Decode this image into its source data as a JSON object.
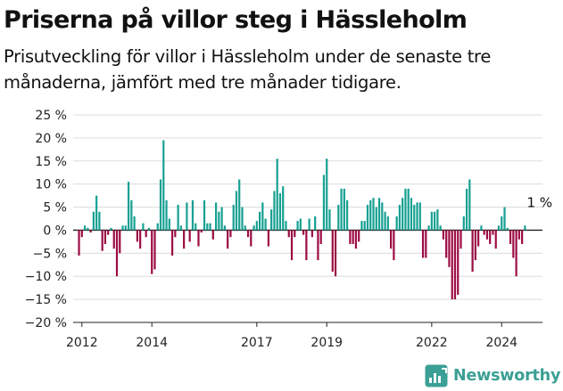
{
  "header": {
    "title": "Priserna på villor steg i Hässleholm",
    "subtitle": "Prisutveckling för villor i Hässleholm under de senaste tre månaderna, jämfört med tre månader tidigare."
  },
  "brand": {
    "name": "Newsworthy",
    "color": "#3a9f94",
    "icon": "newsworthy-logo-icon"
  },
  "colors": {
    "positive": "#16a092",
    "negative": "#9c0c43",
    "grid": "#dcdcdc",
    "axis": "#222222"
  },
  "chart_data": {
    "type": "bar",
    "title": "Priserna på villor steg i Hässleholm",
    "subtitle": "Prisutveckling för villor i Hässleholm under de senaste tre månaderna, jämfört med tre månader tidigare.",
    "xlabel": "",
    "ylabel": "",
    "ylim": [
      -20,
      25
    ],
    "yticks": [
      -20,
      -15,
      -10,
      -5,
      0,
      5,
      10,
      15,
      20,
      25
    ],
    "ytick_labels": [
      "−20 %",
      "−15 %",
      "−10 %",
      "−5 %",
      "0 %",
      "5 %",
      "10 %",
      "15 %",
      "20 %",
      "25 %"
    ],
    "x_range": [
      "2011-10",
      "2025-03"
    ],
    "xticks": [
      "2012",
      "2014",
      "2017",
      "2019",
      "2022",
      "2024"
    ],
    "grid": true,
    "legend": "none",
    "annotation": {
      "label": "1 %",
      "date": "2025-02",
      "value": 1
    },
    "series": [
      {
        "values": [
          {
            "date": "2011-12",
            "value": -5.5
          },
          {
            "date": "2012-01",
            "value": -1.5
          },
          {
            "date": "2012-02",
            "value": 1
          },
          {
            "date": "2012-03",
            "value": 0.5
          },
          {
            "date": "2012-04",
            "value": -0.5
          },
          {
            "date": "2012-05",
            "value": 4
          },
          {
            "date": "2012-06",
            "value": 7.5
          },
          {
            "date": "2012-07",
            "value": 4
          },
          {
            "date": "2012-08",
            "value": -4.5
          },
          {
            "date": "2012-09",
            "value": -3
          },
          {
            "date": "2012-10",
            "value": -1
          },
          {
            "date": "2012-11",
            "value": 0.5
          },
          {
            "date": "2012-12",
            "value": -4
          },
          {
            "date": "2013-01",
            "value": -10
          },
          {
            "date": "2013-02",
            "value": -5
          },
          {
            "date": "2013-03",
            "value": 1
          },
          {
            "date": "2013-04",
            "value": 1
          },
          {
            "date": "2013-05",
            "value": 10.5
          },
          {
            "date": "2013-06",
            "value": 6.5
          },
          {
            "date": "2013-07",
            "value": 3
          },
          {
            "date": "2013-08",
            "value": -2.5
          },
          {
            "date": "2013-09",
            "value": -4
          },
          {
            "date": "2013-10",
            "value": 1.5
          },
          {
            "date": "2013-11",
            "value": -1.5
          },
          {
            "date": "2013-12",
            "value": 0.5
          },
          {
            "date": "2014-01",
            "value": -9.5
          },
          {
            "date": "2014-02",
            "value": -8.5
          },
          {
            "date": "2014-03",
            "value": 1.5
          },
          {
            "date": "2014-04",
            "value": 11
          },
          {
            "date": "2014-05",
            "value": 19.5
          },
          {
            "date": "2014-06",
            "value": 6.5
          },
          {
            "date": "2014-07",
            "value": 2.5
          },
          {
            "date": "2014-08",
            "value": -5.5
          },
          {
            "date": "2014-09",
            "value": -1.5
          },
          {
            "date": "2014-10",
            "value": 5.5
          },
          {
            "date": "2014-11",
            "value": 1
          },
          {
            "date": "2014-12",
            "value": -4
          },
          {
            "date": "2015-01",
            "value": 6
          },
          {
            "date": "2015-02",
            "value": -2.5
          },
          {
            "date": "2015-03",
            "value": 6.5
          },
          {
            "date": "2015-04",
            "value": 1.5
          },
          {
            "date": "2015-05",
            "value": -3.5
          },
          {
            "date": "2015-06",
            "value": -0.5
          },
          {
            "date": "2015-07",
            "value": 6.5
          },
          {
            "date": "2015-08",
            "value": 1.5
          },
          {
            "date": "2015-09",
            "value": 1.5
          },
          {
            "date": "2015-10",
            "value": -2
          },
          {
            "date": "2015-11",
            "value": 6
          },
          {
            "date": "2015-12",
            "value": 4
          },
          {
            "date": "2016-01",
            "value": 5
          },
          {
            "date": "2016-02",
            "value": 1
          },
          {
            "date": "2016-03",
            "value": -4
          },
          {
            "date": "2016-04",
            "value": -1.5
          },
          {
            "date": "2016-05",
            "value": 5.5
          },
          {
            "date": "2016-06",
            "value": 8.5
          },
          {
            "date": "2016-07",
            "value": 11
          },
          {
            "date": "2016-08",
            "value": 5
          },
          {
            "date": "2016-09",
            "value": 1
          },
          {
            "date": "2016-10",
            "value": -1.5
          },
          {
            "date": "2016-11",
            "value": -3.5
          },
          {
            "date": "2016-12",
            "value": 1
          },
          {
            "date": "2017-01",
            "value": 2
          },
          {
            "date": "2017-02",
            "value": 4
          },
          {
            "date": "2017-03",
            "value": 6
          },
          {
            "date": "2017-04",
            "value": 2.5
          },
          {
            "date": "2017-05",
            "value": -3.5
          },
          {
            "date": "2017-06",
            "value": 4.5
          },
          {
            "date": "2017-07",
            "value": 8.5
          },
          {
            "date": "2017-08",
            "value": 15.5
          },
          {
            "date": "2017-09",
            "value": 8
          },
          {
            "date": "2017-10",
            "value": 9.5
          },
          {
            "date": "2017-11",
            "value": 2
          },
          {
            "date": "2017-12",
            "value": -1.5
          },
          {
            "date": "2018-01",
            "value": -6.5
          },
          {
            "date": "2018-02",
            "value": -1.5
          },
          {
            "date": "2018-03",
            "value": 2
          },
          {
            "date": "2018-04",
            "value": 2.5
          },
          {
            "date": "2018-05",
            "value": -1
          },
          {
            "date": "2018-06",
            "value": -6.5
          },
          {
            "date": "2018-07",
            "value": 2.5
          },
          {
            "date": "2018-08",
            "value": -1.5
          },
          {
            "date": "2018-09",
            "value": 3
          },
          {
            "date": "2018-10",
            "value": -6.5
          },
          {
            "date": "2018-11",
            "value": -3
          },
          {
            "date": "2018-12",
            "value": 12
          },
          {
            "date": "2019-01",
            "value": 15.5
          },
          {
            "date": "2019-02",
            "value": 4.5
          },
          {
            "date": "2019-03",
            "value": -9
          },
          {
            "date": "2019-04",
            "value": -10
          },
          {
            "date": "2019-05",
            "value": 5.5
          },
          {
            "date": "2019-06",
            "value": 9
          },
          {
            "date": "2019-07",
            "value": 9
          },
          {
            "date": "2019-08",
            "value": 6.5
          },
          {
            "date": "2019-09",
            "value": -3
          },
          {
            "date": "2019-10",
            "value": -3
          },
          {
            "date": "2019-11",
            "value": -4
          },
          {
            "date": "2019-12",
            "value": -2.5
          },
          {
            "date": "2020-01",
            "value": 2
          },
          {
            "date": "2020-02",
            "value": 2
          },
          {
            "date": "2020-03",
            "value": 5.5
          },
          {
            "date": "2020-04",
            "value": 6.5
          },
          {
            "date": "2020-05",
            "value": 7
          },
          {
            "date": "2020-06",
            "value": 5
          },
          {
            "date": "2020-07",
            "value": 7
          },
          {
            "date": "2020-08",
            "value": 6
          },
          {
            "date": "2020-09",
            "value": 4
          },
          {
            "date": "2020-10",
            "value": 3
          },
          {
            "date": "2020-11",
            "value": -4
          },
          {
            "date": "2020-12",
            "value": -6.5
          },
          {
            "date": "2021-01",
            "value": 3
          },
          {
            "date": "2021-02",
            "value": 5.5
          },
          {
            "date": "2021-03",
            "value": 7
          },
          {
            "date": "2021-04",
            "value": 9
          },
          {
            "date": "2021-05",
            "value": 9
          },
          {
            "date": "2021-06",
            "value": 7
          },
          {
            "date": "2021-07",
            "value": 5.5
          },
          {
            "date": "2021-08",
            "value": 6
          },
          {
            "date": "2021-09",
            "value": 6
          },
          {
            "date": "2021-10",
            "value": -6
          },
          {
            "date": "2021-11",
            "value": -6
          },
          {
            "date": "2021-12",
            "value": 1
          },
          {
            "date": "2022-01",
            "value": 4
          },
          {
            "date": "2022-02",
            "value": 4
          },
          {
            "date": "2022-03",
            "value": 4.5
          },
          {
            "date": "2022-04",
            "value": 1
          },
          {
            "date": "2022-05",
            "value": -2
          },
          {
            "date": "2022-06",
            "value": -6
          },
          {
            "date": "2022-07",
            "value": -8
          },
          {
            "date": "2022-08",
            "value": -15
          },
          {
            "date": "2022-09",
            "value": -15
          },
          {
            "date": "2022-10",
            "value": -14
          },
          {
            "date": "2022-11",
            "value": -4
          },
          {
            "date": "2022-12",
            "value": 3
          },
          {
            "date": "2023-01",
            "value": 9
          },
          {
            "date": "2023-02",
            "value": 11
          },
          {
            "date": "2023-03",
            "value": -9
          },
          {
            "date": "2023-04",
            "value": -6.5
          },
          {
            "date": "2023-05",
            "value": -3.5
          },
          {
            "date": "2023-06",
            "value": 1
          },
          {
            "date": "2023-07",
            "value": -1
          },
          {
            "date": "2023-08",
            "value": -2
          },
          {
            "date": "2023-09",
            "value": -3
          },
          {
            "date": "2023-10",
            "value": -1
          },
          {
            "date": "2023-11",
            "value": -4
          },
          {
            "date": "2023-12",
            "value": 1
          },
          {
            "date": "2024-01",
            "value": 3
          },
          {
            "date": "2024-02",
            "value": 5
          },
          {
            "date": "2024-03",
            "value": 0.5
          },
          {
            "date": "2024-04",
            "value": -3
          },
          {
            "date": "2024-05",
            "value": -6
          },
          {
            "date": "2024-06",
            "value": -10
          },
          {
            "date": "2024-07",
            "value": -2
          },
          {
            "date": "2024-08",
            "value": -3
          },
          {
            "date": "2024-09",
            "value": 1
          }
        ]
      }
    ]
  }
}
